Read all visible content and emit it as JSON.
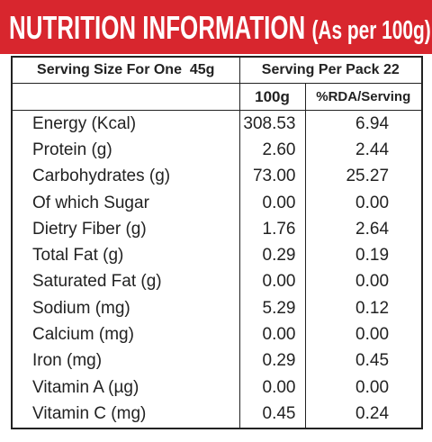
{
  "header": {
    "title": "NUTRITION INFORMATION",
    "subtitle": "(As per 100g)"
  },
  "serving": {
    "size": "Serving Size For One  45g",
    "per_pack": "Serving Per Pack 22"
  },
  "table": {
    "columns": [
      "100g",
      "%RDA/Serving"
    ],
    "rows": [
      [
        "Energy (Kcal)",
        "308.53",
        "6.94"
      ],
      [
        "Protein (g)",
        "2.60",
        "2.44"
      ],
      [
        "Carbohydrates (g)",
        "73.00",
        "25.27"
      ],
      [
        "Of which Sugar",
        "0.00",
        "0.00"
      ],
      [
        "Dietry Fiber (g)",
        "1.76",
        "2.64"
      ],
      [
        "Total Fat (g)",
        "0.29",
        "0.19"
      ],
      [
        "Saturated Fat (g)",
        "0.00",
        "0.00"
      ],
      [
        "Sodium (mg)",
        "5.29",
        "0.12"
      ],
      [
        "Calcium (mg)",
        "0.00",
        "0.00"
      ],
      [
        "Iron (mg)",
        "0.29",
        "0.45"
      ],
      [
        "Vitamin A (µg)",
        "0.00",
        "0.00"
      ],
      [
        "Vitamin C (mg)",
        "0.45",
        "0.24"
      ]
    ]
  }
}
